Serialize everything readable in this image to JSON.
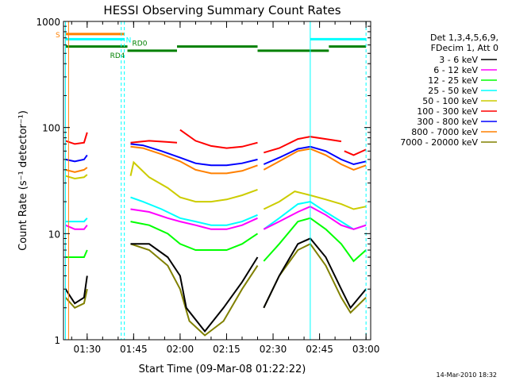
{
  "chart_data": {
    "type": "line",
    "title": "HESSI Observing Summary Count Rates",
    "xlabel": "Start Time (09-Mar-08 01:22:22)",
    "ylabel": "Count Rate (s⁻¹ detector⁻¹)",
    "y_scale": "log",
    "ylim": [
      1,
      1000
    ],
    "x_range": [
      "01:22:22",
      "03:01:30"
    ],
    "x_ticks": [
      "01:30",
      "01:45",
      "02:00",
      "02:15",
      "02:30",
      "02:45",
      "03:00"
    ],
    "y_ticks": [
      "1",
      "10",
      "100",
      "1000"
    ],
    "grid": false,
    "legend_position": "right",
    "legend_header": [
      "Det 1,3,4,5,6,9,",
      "FDecim 1, Att 0"
    ],
    "footer_date": "14-Mar-2010 18:32",
    "series": [
      {
        "name": "3 - 6 keV",
        "color": "#000000",
        "segments": [
          {
            "x": [
              "01:23",
              "01:26",
              "01:29",
              "01:30"
            ],
            "y": [
              3,
              2.2,
              2.5,
              4
            ]
          },
          {
            "x": [
              "01:44",
              "01:50",
              "01:56",
              "02:00",
              "02:02",
              "02:08",
              "02:14",
              "02:20",
              "02:25"
            ],
            "y": [
              8,
              8,
              6,
              4,
              2,
              1.2,
              2,
              3.5,
              6
            ]
          },
          {
            "x": [
              "02:27",
              "02:32",
              "02:38",
              "02:42",
              "02:47",
              "02:52",
              "02:55",
              "03:00"
            ],
            "y": [
              2,
              4,
              8,
              9,
              6,
              3,
              2,
              3
            ]
          }
        ]
      },
      {
        "name": "6 - 12 keV",
        "color": "#ff00ff",
        "segments": [
          {
            "x": [
              "01:23",
              "01:26",
              "01:29",
              "01:30"
            ],
            "y": [
              12,
              11,
              11,
              12
            ]
          },
          {
            "x": [
              "01:44",
              "01:50",
              "01:56",
              "02:00",
              "02:05",
              "02:10",
              "02:15",
              "02:20",
              "02:25"
            ],
            "y": [
              17,
              16,
              14,
              13,
              12,
              11,
              11,
              12,
              14
            ]
          },
          {
            "x": [
              "02:27",
              "02:32",
              "02:38",
              "02:42",
              "02:47",
              "02:52",
              "02:56",
              "03:00"
            ],
            "y": [
              11,
              13,
              16,
              18,
              15,
              12,
              11,
              12
            ]
          }
        ]
      },
      {
        "name": "12 - 25 keV",
        "color": "#00ff00",
        "segments": [
          {
            "x": [
              "01:23",
              "01:26",
              "01:29",
              "01:30"
            ],
            "y": [
              6,
              6,
              6,
              7
            ]
          },
          {
            "x": [
              "01:44",
              "01:50",
              "01:56",
              "02:00",
              "02:05",
              "02:10",
              "02:15",
              "02:20",
              "02:25"
            ],
            "y": [
              13,
              12,
              10,
              8,
              7,
              7,
              7,
              8,
              10
            ]
          },
          {
            "x": [
              "02:27",
              "02:32",
              "02:38",
              "02:42",
              "02:47",
              "02:52",
              "02:56",
              "03:00"
            ],
            "y": [
              5.5,
              8,
              13,
              14,
              11,
              8,
              5.5,
              7
            ]
          }
        ]
      },
      {
        "name": "25 - 50 keV",
        "color": "#00ffff",
        "segments": [
          {
            "x": [
              "01:23",
              "01:26",
              "01:29",
              "01:30"
            ],
            "y": [
              13,
              13,
              13,
              14
            ]
          },
          {
            "x": [
              "01:44",
              "01:48",
              "01:54",
              "02:00",
              "02:05",
              "02:10",
              "02:15",
              "02:20",
              "02:25"
            ],
            "y": [
              22,
              20,
              17,
              14,
              13,
              12,
              12,
              13,
              15
            ]
          },
          {
            "x": [
              "02:27",
              "02:32",
              "02:38",
              "02:42",
              "02:47",
              "02:52",
              "02:56",
              "03:00"
            ],
            "y": [
              11,
              14,
              19,
              20,
              16,
              13,
              11,
              12
            ]
          }
        ]
      },
      {
        "name": "50 - 100 keV",
        "color": "#cccc00",
        "segments": [
          {
            "x": [
              "01:23",
              "01:26",
              "01:29",
              "01:30"
            ],
            "y": [
              35,
              33,
              34,
              36
            ]
          },
          {
            "x": [
              "01:44",
              "01:45",
              "01:50",
              "01:56",
              "02:00",
              "02:05",
              "02:10",
              "02:15",
              "02:20",
              "02:25"
            ],
            "y": [
              35,
              47,
              34,
              27,
              22,
              20,
              20,
              21,
              23,
              26
            ]
          },
          {
            "x": [
              "02:27",
              "02:32",
              "02:37",
              "02:42",
              "02:47",
              "02:52",
              "02:56",
              "03:00"
            ],
            "y": [
              17,
              20,
              25,
              23,
              21,
              19,
              17,
              18
            ]
          }
        ]
      },
      {
        "name": "100 - 300 keV",
        "color": "#ff0000",
        "segments": [
          {
            "x": [
              "01:23",
              "01:26",
              "01:29",
              "01:30"
            ],
            "y": [
              75,
              70,
              72,
              90
            ]
          },
          {
            "x": [
              "01:44",
              "01:50",
              "01:56",
              "01:59"
            ],
            "y": [
              72,
              75,
              73,
              72
            ]
          },
          {
            "x": [
              "02:00",
              "02:05",
              "02:10",
              "02:15",
              "02:20",
              "02:25"
            ],
            "y": [
              95,
              75,
              67,
              64,
              66,
              72
            ]
          },
          {
            "x": [
              "02:27",
              "02:32",
              "02:38",
              "02:42",
              "02:47",
              "02:52"
            ],
            "y": [
              58,
              64,
              78,
              82,
              78,
              74
            ]
          },
          {
            "x": [
              "02:53",
              "02:56",
              "03:00"
            ],
            "y": [
              60,
              55,
              62
            ]
          }
        ]
      },
      {
        "name": "300 - 800 keV",
        "color": "#0000ff",
        "segments": [
          {
            "x": [
              "01:23",
              "01:26",
              "01:29",
              "01:30"
            ],
            "y": [
              50,
              48,
              50,
              55
            ]
          },
          {
            "x": [
              "01:44",
              "01:48",
              "01:54",
              "02:00",
              "02:05",
              "02:10",
              "02:15",
              "02:20",
              "02:25"
            ],
            "y": [
              70,
              68,
              60,
              52,
              46,
              44,
              44,
              46,
              50
            ]
          },
          {
            "x": [
              "02:27",
              "02:32",
              "02:38",
              "02:42",
              "02:47",
              "02:52",
              "02:56",
              "03:00"
            ],
            "y": [
              45,
              52,
              63,
              66,
              60,
              50,
              45,
              48
            ]
          }
        ]
      },
      {
        "name": "800 - 7000 keV",
        "color": "#ff8000",
        "segments": [
          {
            "x": [
              "01:23",
              "01:26",
              "01:29",
              "01:30"
            ],
            "y": [
              40,
              38,
              40,
              42
            ]
          },
          {
            "x": [
              "01:44",
              "01:48",
              "01:54",
              "02:00",
              "02:05",
              "02:10",
              "02:15",
              "02:20",
              "02:25"
            ],
            "y": [
              66,
              64,
              56,
              48,
              40,
              37,
              37,
              39,
              44
            ]
          },
          {
            "x": [
              "02:27",
              "02:32",
              "02:38",
              "02:42",
              "02:47",
              "02:52",
              "02:56",
              "03:00"
            ],
            "y": [
              40,
              48,
              60,
              63,
              55,
              45,
              40,
              44
            ]
          }
        ]
      },
      {
        "name": "7000 - 20000 keV",
        "color": "#808000",
        "segments": [
          {
            "x": [
              "01:23",
              "01:26",
              "01:29",
              "01:30"
            ],
            "y": [
              2.5,
              2,
              2.2,
              3
            ]
          },
          {
            "x": [
              "01:44",
              "01:50",
              "01:56",
              "02:00",
              "02:03",
              "02:08",
              "02:14",
              "02:20",
              "02:25"
            ],
            "y": [
              8,
              7,
              5,
              3,
              1.5,
              1.1,
              1.5,
              3,
              5
            ]
          },
          {
            "x": [
              "02:27",
              "02:32",
              "02:38",
              "02:42",
              "02:47",
              "02:52",
              "02:55",
              "03:00"
            ],
            "y": [
              2,
              4,
              7,
              8,
              5,
              2.5,
              1.8,
              2.5
            ]
          }
        ]
      }
    ],
    "markers": [
      {
        "label": "S",
        "color": "#ff8000",
        "line_y": 760,
        "spans": [
          [
            "01:23",
            "01:42"
          ]
        ]
      },
      {
        "label": "N",
        "color": "#00ffff",
        "line_y": 680,
        "spans": [
          [
            "01:23",
            "01:42"
          ],
          [
            "02:42",
            "03:00"
          ]
        ]
      },
      {
        "label": "RD0",
        "color": "#008000",
        "line_y": 580,
        "spans": [
          [
            "01:23",
            "01:43"
          ],
          [
            "01:59",
            "02:25"
          ],
          [
            "02:48",
            "03:00"
          ]
        ]
      },
      {
        "label": "RD4",
        "color": "#008000",
        "line_y": 530,
        "spans": [
          [
            "01:43",
            "01:59"
          ],
          [
            "02:25",
            "02:48"
          ]
        ]
      }
    ],
    "vertical_lines": [
      {
        "x": "01:24",
        "color": "#ff8000",
        "style": "solid"
      },
      {
        "x": "01:23",
        "color": "#00ffff",
        "style": "solid"
      },
      {
        "x": "01:41",
        "color": "#00ffff",
        "style": "dashed"
      },
      {
        "x": "01:42",
        "color": "#00ffff",
        "style": "dashed"
      },
      {
        "x": "02:42",
        "color": "#00ffff",
        "style": "solid"
      },
      {
        "x": "03:00",
        "color": "#00ffff",
        "style": "dashed"
      }
    ]
  }
}
